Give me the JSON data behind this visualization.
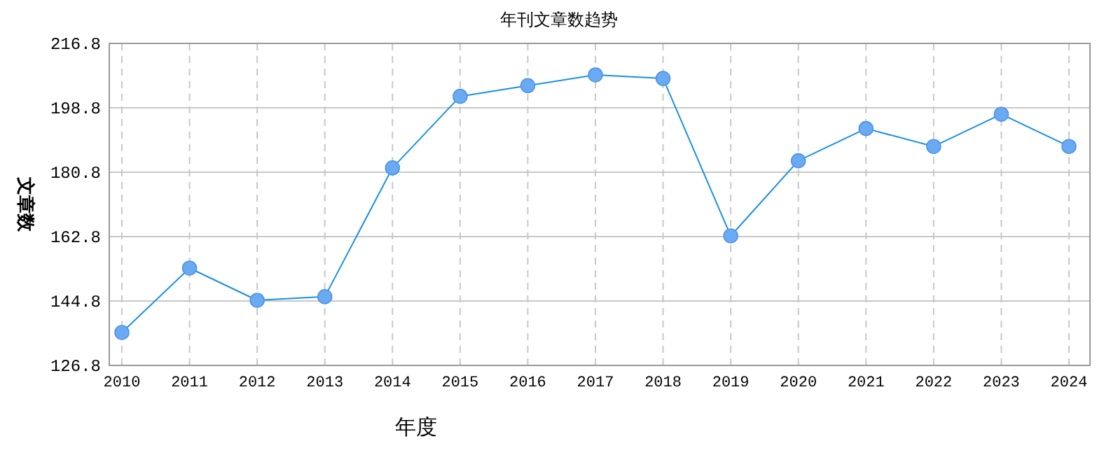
{
  "chart_data": {
    "type": "line",
    "title": "年刊文章数趋势",
    "xlabel": "年度",
    "ylabel": "文章数",
    "categories": [
      "2010",
      "2011",
      "2012",
      "2013",
      "2014",
      "2015",
      "2016",
      "2017",
      "2018",
      "2019",
      "2020",
      "2021",
      "2022",
      "2023",
      "2024"
    ],
    "series": [
      {
        "color": "#1a8fe8",
        "values": [
          136,
          154,
          145,
          146,
          182,
          202,
          205,
          208,
          207,
          163,
          184,
          193,
          188,
          197,
          188
        ]
      }
    ],
    "ylim": [
      126.8,
      216.8
    ],
    "yticks": [
      126.8,
      144.8,
      162.8,
      180.8,
      198.8,
      216.8
    ],
    "grid": true,
    "marker": "circle"
  }
}
